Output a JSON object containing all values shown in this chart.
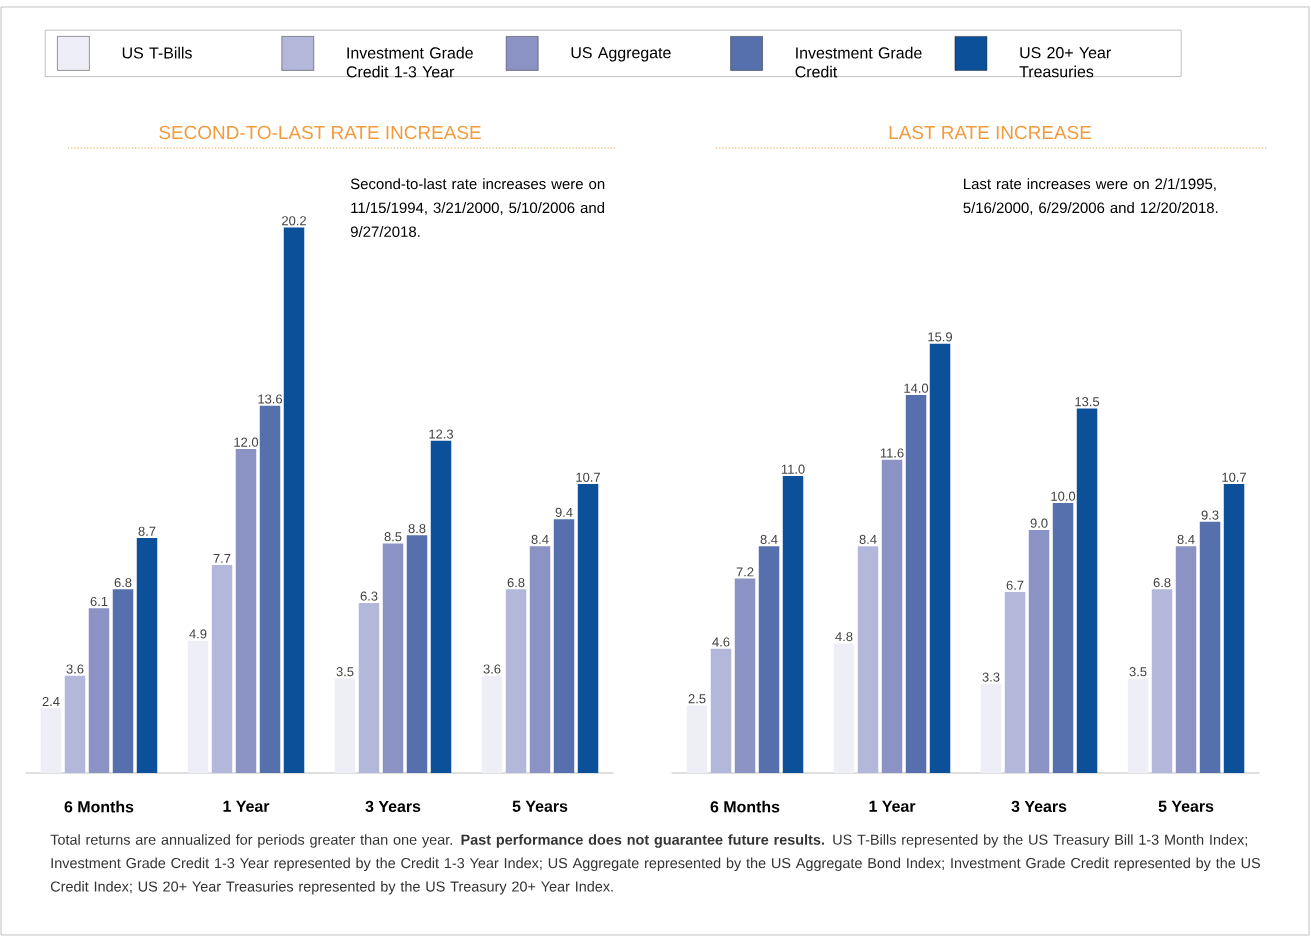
{
  "chart_data": [
    {
      "type": "bar",
      "title": "SECOND-TO-LAST RATE INCREASE",
      "categories": [
        "6 Months",
        "1 Year",
        "3 Years",
        "5 Years"
      ],
      "legend": "top",
      "series": [
        {
          "name": "US T-Bills",
          "color": "#eeeef7",
          "values": [
            2.4,
            4.9,
            3.5,
            3.6
          ],
          "value_labels": [
            "2.4",
            "4.9",
            "3.5",
            "3.6"
          ]
        },
        {
          "name": "Investment Grade Credit 1-3 Year",
          "color": "#b3b7d9",
          "values": [
            3.6,
            7.7,
            6.3,
            6.8
          ],
          "value_labels": [
            "3.6",
            "7.7",
            "6.3",
            "6.8"
          ]
        },
        {
          "name": "US Aggregate",
          "color": "#8a93c3",
          "values": [
            6.1,
            12.0,
            8.5,
            8.4
          ],
          "value_labels": [
            "6.1",
            "12.0",
            "8.5",
            "8.4"
          ]
        },
        {
          "name": "Investment Grade Credit",
          "color": "#5670ad",
          "values": [
            6.8,
            13.6,
            8.8,
            9.4
          ],
          "value_labels": [
            "6.8",
            "13.6",
            "8.8",
            "9.4"
          ]
        },
        {
          "name": "US 20+ Year Treasuries",
          "color": "#0b5098",
          "values": [
            8.7,
            20.2,
            12.3,
            10.7
          ],
          "value_labels": [
            "8.7",
            "20.2",
            "12.3",
            "10.7"
          ]
        }
      ],
      "annotations": [
        "Second-to-last rate increases were on 11/15/1994, 3/21/2000, 5/10/2006 and 9/27/2018."
      ]
    },
    {
      "type": "bar",
      "title": "LAST RATE INCREASE",
      "categories": [
        "6 Months",
        "1 Year",
        "3 Years",
        "5 Years"
      ],
      "series": [
        {
          "color": "#eeeef7",
          "values": [
            2.5,
            4.8,
            3.3,
            3.5
          ],
          "value_labels": [
            "2.5",
            "4.8",
            "3.3",
            "3.5"
          ]
        },
        {
          "color": "#b3b7d9",
          "values": [
            4.6,
            8.4,
            6.7,
            6.8
          ],
          "value_labels": [
            "4.6",
            "8.4",
            "6.7",
            "6.8"
          ]
        },
        {
          "color": "#8a93c3",
          "values": [
            7.2,
            11.6,
            9.0,
            8.4
          ],
          "value_labels": [
            "7.2",
            "11.6",
            "9.0",
            "8.4"
          ]
        },
        {
          "color": "#5670ad",
          "values": [
            8.4,
            14.0,
            10.0,
            9.3
          ],
          "value_labels": [
            "8.4",
            "14.0",
            "10.0",
            "9.3"
          ]
        },
        {
          "color": "#0b5098",
          "values": [
            11.0,
            15.9,
            13.5,
            10.7
          ],
          "value_labels": [
            "11.0",
            "15.9",
            "13.5",
            "10.7"
          ]
        }
      ],
      "annotations": [
        "Last rate increases were on 2/1/1995, 5/16/2000, 6/29/2006 and 12/20/2018.",
        "Total returns are annualized for periods greater than one year. **Past performance does not guarantee future results.** US T-Bills represented by the US Treasury Bill 1-3 Month Index; Investment Grade Credit 1-3 Year represented by the Credit 1-3 Year Index; US Aggregate represented by the US Aggregate Bond Index; Investment Grade Credit represented by the US Credit Index; US 20+ Year Treasuries represented by the US Treasury 20+ Year Index."
      ]
    }
  ]
}
